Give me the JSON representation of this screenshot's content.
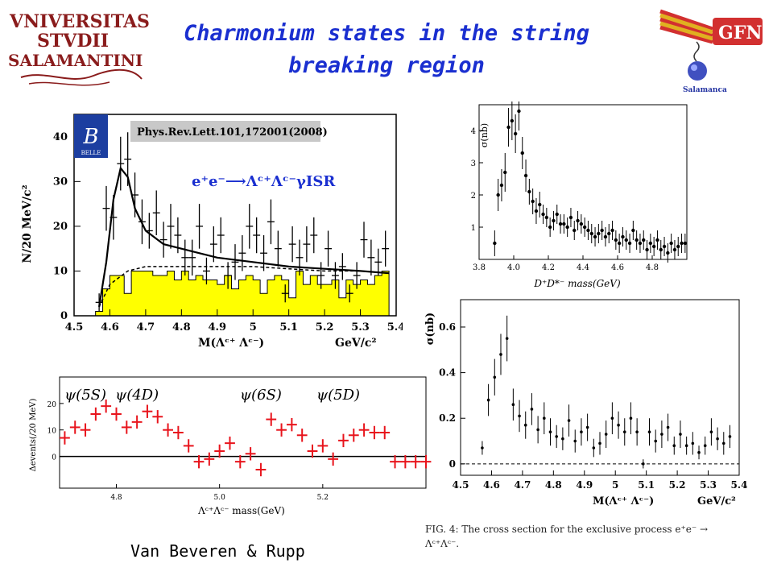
{
  "header": {
    "title_line1": "Charmonium states in the string",
    "title_line2": "breaking region",
    "logo_left_lines": [
      "VNIVERSITAS",
      "STVDII",
      "SALAMANTINI"
    ],
    "logo_right_text": "GFN",
    "logo_right_sub": "Salamanca"
  },
  "footer": {
    "credit": "Van Beveren & Rupp"
  },
  "caption": {
    "line1": "FIG. 4:  The cross section for the exclusive process e⁺e⁻ →",
    "line2": "Λᶜ⁺Λᶜ⁻."
  },
  "colors": {
    "title": "#1a2fd0",
    "fill_yellow": "#ffff00",
    "red": "#e8141c",
    "banner": "#c8c8c8"
  },
  "chart_data": [
    {
      "id": "belle",
      "type": "scatter",
      "ylabel": "N/20 MeV/c²",
      "xlabel": "M(Λᶜ⁺ Λᶜ⁻)",
      "xunit": "GeV/c²",
      "banner": "Phys.Rev.Lett.101,172001(2008)",
      "annotation": "e⁺e⁻⟶Λᶜ⁺Λᶜ⁻γISR",
      "badge": "BELLE",
      "xlim": [
        4.5,
        5.4
      ],
      "ylim": [
        0,
        45
      ],
      "xticks": [
        "4.5",
        "4.6",
        "4.7",
        "4.8",
        "4.9",
        "5",
        "5.1",
        "5.2",
        "5.3",
        "5.4"
      ],
      "yticks": [
        "0",
        "10",
        "20",
        "30",
        "40"
      ],
      "x": [
        4.57,
        4.59,
        4.61,
        4.63,
        4.65,
        4.67,
        4.69,
        4.71,
        4.73,
        4.75,
        4.77,
        4.79,
        4.81,
        4.83,
        4.85,
        4.87,
        4.89,
        4.91,
        4.93,
        4.95,
        4.97,
        4.99,
        5.01,
        5.03,
        5.05,
        5.07,
        5.09,
        5.11,
        5.13,
        5.15,
        5.17,
        5.19,
        5.21,
        5.23,
        5.25,
        5.27,
        5.29,
        5.31,
        5.33,
        5.35,
        5.37
      ],
      "y": [
        3,
        24,
        22,
        34,
        35,
        27,
        21,
        19,
        23,
        17,
        20,
        18,
        13,
        13,
        20,
        10,
        16,
        18,
        9,
        12,
        14,
        20,
        18,
        14,
        21,
        15,
        5,
        16,
        13,
        16,
        18,
        9,
        15,
        9,
        11,
        5,
        9,
        17,
        13,
        12,
        15
      ],
      "err": [
        2,
        5,
        5,
        6,
        6,
        5,
        5,
        4,
        5,
        4,
        5,
        4,
        4,
        4,
        5,
        3,
        4,
        4,
        3,
        4,
        4,
        5,
        4,
        4,
        5,
        4,
        2,
        4,
        4,
        4,
        4,
        3,
        4,
        3,
        3,
        2,
        3,
        4,
        4,
        3,
        4
      ],
      "fit": [
        [
          4.57,
          2
        ],
        [
          4.59,
          12
        ],
        [
          4.61,
          26
        ],
        [
          4.63,
          33
        ],
        [
          4.65,
          31
        ],
        [
          4.67,
          24
        ],
        [
          4.7,
          19
        ],
        [
          4.75,
          16
        ],
        [
          4.8,
          15
        ],
        [
          4.9,
          13
        ],
        [
          5.0,
          12
        ],
        [
          5.1,
          11
        ],
        [
          5.2,
          10.5
        ],
        [
          5.3,
          10
        ],
        [
          5.38,
          9.5
        ]
      ],
      "background_dashed": [
        [
          4.57,
          2
        ],
        [
          4.6,
          7
        ],
        [
          4.65,
          10
        ],
        [
          4.7,
          11
        ],
        [
          4.8,
          11
        ],
        [
          4.9,
          11
        ],
        [
          5.0,
          11
        ],
        [
          5.1,
          10.5
        ],
        [
          5.2,
          10
        ],
        [
          5.3,
          10
        ],
        [
          5.38,
          9.5
        ]
      ],
      "hist": [
        1,
        6,
        9,
        9,
        5,
        10,
        10,
        10,
        9,
        9,
        10,
        8,
        10,
        8,
        9,
        8,
        8,
        7,
        9,
        6,
        8,
        9,
        8,
        5,
        8,
        9,
        8,
        4,
        10,
        7,
        9,
        7,
        7,
        8,
        4,
        8,
        7,
        8,
        7,
        9,
        10
      ]
    },
    {
      "id": "dd",
      "type": "scatter",
      "ylabel": "σ(nb)",
      "xlabel": "D⁺D*⁻ mass(GeV)",
      "xlim": [
        3.8,
        5.0
      ],
      "ylim": [
        0,
        4.8
      ],
      "xticks": [
        "3.8",
        "4.0",
        "4.2",
        "4.4",
        "4.6",
        "4.8"
      ],
      "yticks": [
        "1",
        "2",
        "3",
        "4"
      ],
      "x": [
        3.89,
        3.91,
        3.93,
        3.95,
        3.97,
        3.99,
        4.01,
        4.03,
        4.05,
        4.07,
        4.09,
        4.11,
        4.13,
        4.15,
        4.17,
        4.19,
        4.21,
        4.23,
        4.25,
        4.27,
        4.29,
        4.31,
        4.33,
        4.35,
        4.37,
        4.39,
        4.41,
        4.43,
        4.45,
        4.47,
        4.49,
        4.51,
        4.53,
        4.55,
        4.57,
        4.59,
        4.61,
        4.63,
        4.65,
        4.67,
        4.69,
        4.71,
        4.73,
        4.75,
        4.77,
        4.79,
        4.81,
        4.83,
        4.85,
        4.87,
        4.89,
        4.91,
        4.93,
        4.95,
        4.97,
        4.99
      ],
      "y": [
        0.5,
        2.0,
        2.3,
        2.7,
        4.1,
        4.3,
        3.9,
        4.6,
        3.3,
        2.6,
        2.1,
        1.8,
        1.5,
        1.7,
        1.4,
        1.3,
        1.0,
        1.2,
        1.4,
        1.1,
        1.1,
        1.0,
        1.3,
        0.9,
        1.2,
        1.1,
        1.0,
        0.9,
        0.8,
        0.7,
        0.8,
        0.9,
        0.7,
        0.8,
        0.9,
        0.6,
        0.5,
        0.7,
        0.6,
        0.5,
        0.9,
        0.6,
        0.5,
        0.6,
        0.3,
        0.5,
        0.4,
        0.6,
        0.3,
        0.4,
        0.2,
        0.5,
        0.3,
        0.4,
        0.5,
        0.5
      ],
      "err": [
        0.4,
        0.5,
        0.5,
        0.6,
        0.6,
        0.6,
        0.6,
        0.6,
        0.5,
        0.5,
        0.4,
        0.4,
        0.4,
        0.4,
        0.3,
        0.3,
        0.3,
        0.3,
        0.3,
        0.3,
        0.3,
        0.3,
        0.3,
        0.3,
        0.3,
        0.3,
        0.3,
        0.3,
        0.3,
        0.3,
        0.3,
        0.3,
        0.3,
        0.3,
        0.3,
        0.3,
        0.3,
        0.3,
        0.3,
        0.3,
        0.3,
        0.3,
        0.3,
        0.3,
        0.3,
        0.3,
        0.3,
        0.3,
        0.3,
        0.3,
        0.3,
        0.3,
        0.3,
        0.3,
        0.3,
        0.3
      ]
    },
    {
      "id": "lc",
      "type": "scatter",
      "ylabel": "σ(nb)",
      "xlabel": "M(Λᶜ⁺ Λᶜ⁻)",
      "xunit": "GeV/c²",
      "xlim": [
        4.5,
        5.4
      ],
      "ylim": [
        -0.05,
        0.72
      ],
      "xticks": [
        "4.5",
        "4.6",
        "4.7",
        "4.8",
        "4.9",
        "5",
        "5.1",
        "5.2",
        "5.3",
        "5.4"
      ],
      "yticks": [
        "0",
        "0.2",
        "0.4",
        "0.6"
      ],
      "x": [
        4.57,
        4.59,
        4.61,
        4.63,
        4.65,
        4.67,
        4.69,
        4.71,
        4.73,
        4.75,
        4.77,
        4.79,
        4.81,
        4.83,
        4.85,
        4.87,
        4.89,
        4.91,
        4.93,
        4.95,
        4.97,
        4.99,
        5.01,
        5.03,
        5.05,
        5.07,
        5.09,
        5.11,
        5.13,
        5.15,
        5.17,
        5.19,
        5.21,
        5.23,
        5.25,
        5.27,
        5.29,
        5.31,
        5.33,
        5.35,
        5.37
      ],
      "y": [
        0.07,
        0.28,
        0.38,
        0.48,
        0.55,
        0.26,
        0.21,
        0.17,
        0.24,
        0.15,
        0.2,
        0.14,
        0.12,
        0.11,
        0.19,
        0.1,
        0.14,
        0.16,
        0.07,
        0.09,
        0.13,
        0.2,
        0.17,
        0.14,
        0.2,
        0.14,
        0.0,
        0.14,
        0.1,
        0.13,
        0.16,
        0.08,
        0.13,
        0.08,
        0.09,
        0.05,
        0.08,
        0.14,
        0.11,
        0.09,
        0.12
      ],
      "err": [
        0.03,
        0.07,
        0.08,
        0.09,
        0.1,
        0.07,
        0.07,
        0.06,
        0.07,
        0.06,
        0.07,
        0.06,
        0.05,
        0.05,
        0.07,
        0.05,
        0.06,
        0.06,
        0.04,
        0.05,
        0.06,
        0.07,
        0.06,
        0.06,
        0.07,
        0.06,
        0.02,
        0.06,
        0.05,
        0.06,
        0.06,
        0.04,
        0.06,
        0.04,
        0.05,
        0.03,
        0.04,
        0.06,
        0.05,
        0.05,
        0.05
      ]
    },
    {
      "id": "model",
      "type": "scatter",
      "ylabel": "Δevents(/20 MeV)",
      "xlabel": "Λᶜ⁺Λᶜ⁻ mass(GeV)",
      "xlim": [
        4.69,
        5.4
      ],
      "ylim": [
        -12,
        30
      ],
      "xticks": [
        "4.8",
        "5.0",
        "5.2"
      ],
      "yticks": [
        "0",
        "10",
        "20"
      ],
      "states": [
        {
          "label": "ψ(5S)",
          "x": 4.74
        },
        {
          "label": "ψ(4D)",
          "x": 4.84
        },
        {
          "label": "ψ(6S)",
          "x": 5.08
        },
        {
          "label": "ψ(5D)",
          "x": 5.23
        }
      ],
      "x": [
        4.7,
        4.72,
        4.74,
        4.76,
        4.78,
        4.8,
        4.82,
        4.84,
        4.86,
        4.88,
        4.9,
        4.92,
        4.94,
        4.96,
        4.98,
        5.0,
        5.02,
        5.04,
        5.06,
        5.08,
        5.1,
        5.12,
        5.14,
        5.16,
        5.18,
        5.2,
        5.22,
        5.24,
        5.26,
        5.28,
        5.3,
        5.32,
        5.34,
        5.36,
        5.38,
        5.4
      ],
      "y": [
        7,
        11,
        10,
        16,
        19,
        16,
        11,
        13,
        17,
        15,
        10,
        9,
        4,
        -2,
        -1,
        2,
        5,
        -2,
        1,
        -5,
        14,
        10,
        12,
        8,
        2,
        4,
        -1,
        6,
        8,
        10,
        9,
        9,
        -2,
        -2,
        -2,
        -2
      ],
      "err": [
        2.5,
        2.5,
        2.5,
        2.5,
        2.5,
        2.5,
        2.5,
        2.5,
        2.5,
        2.5,
        2.5,
        2.5,
        2.5,
        2.5,
        2.5,
        2.5,
        2.5,
        2.5,
        2.5,
        2.5,
        2.5,
        2.5,
        2.5,
        2.5,
        2.5,
        2.5,
        2.5,
        2.5,
        2.5,
        2.5,
        2.5,
        2.5,
        2.5,
        2.5,
        2.5,
        2.5
      ]
    }
  ]
}
